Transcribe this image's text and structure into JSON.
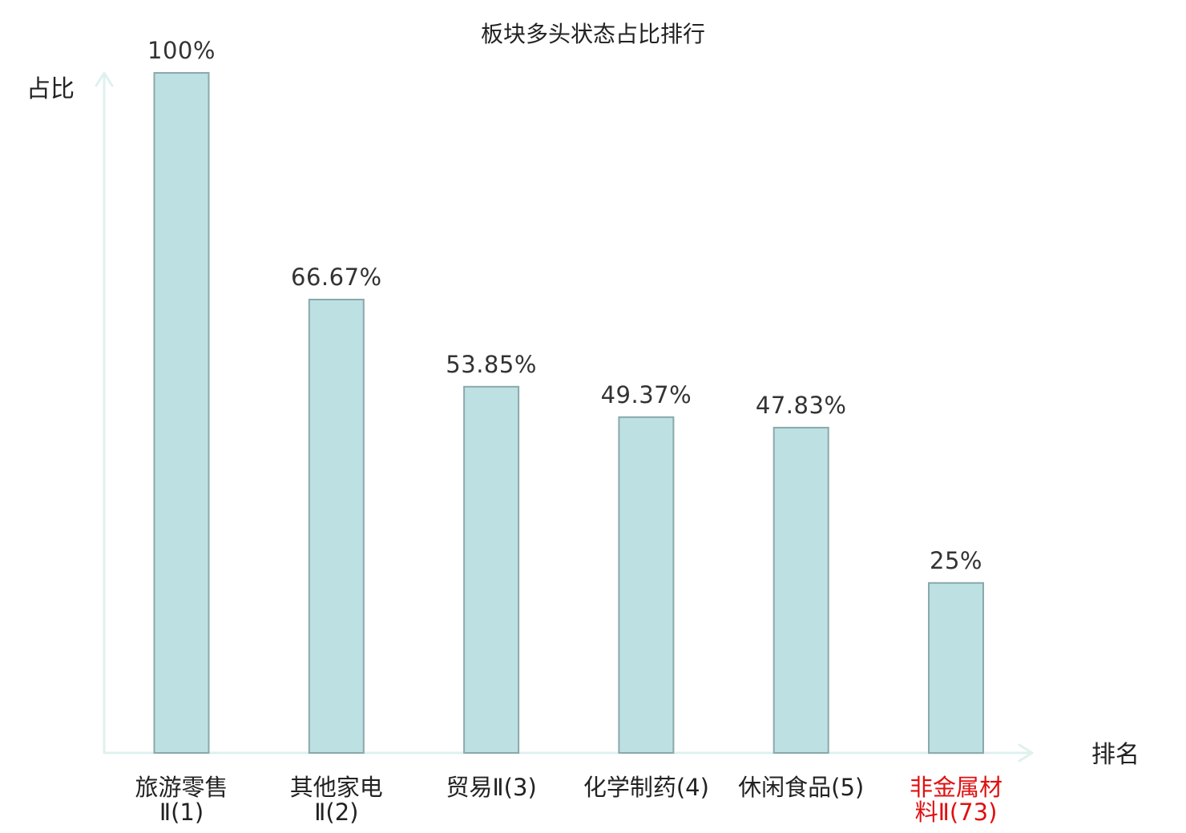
{
  "chart_data": {
    "type": "bar",
    "title": "板块多头状态占比排行",
    "ylabel": "占比",
    "xlabel": "排名",
    "ylim": [
      0,
      100
    ],
    "grid": false,
    "categories": [
      {
        "lines": [
          "旅游零售",
          "Ⅱ(1)"
        ],
        "highlight": false
      },
      {
        "lines": [
          "其他家电",
          "Ⅱ(2)"
        ],
        "highlight": false
      },
      {
        "lines": [
          "贸易Ⅱ(3)"
        ],
        "highlight": false
      },
      {
        "lines": [
          "化学制药(4)"
        ],
        "highlight": false
      },
      {
        "lines": [
          "休闲食品(5)"
        ],
        "highlight": false
      },
      {
        "lines": [
          "非金属材",
          "料Ⅱ(73)"
        ],
        "highlight": true
      }
    ],
    "values": [
      100,
      66.67,
      53.85,
      49.37,
      47.83,
      25
    ],
    "value_labels": [
      "100%",
      "66.67%",
      "53.85%",
      "49.37%",
      "47.83%",
      "25%"
    ]
  },
  "colors": {
    "bar_fill": "#bde0e3",
    "bar_stroke": "#8aa9ab",
    "axis": "#dff1ee",
    "text": "#222222",
    "value_text": "#333333",
    "highlight_text": "#e01010"
  }
}
